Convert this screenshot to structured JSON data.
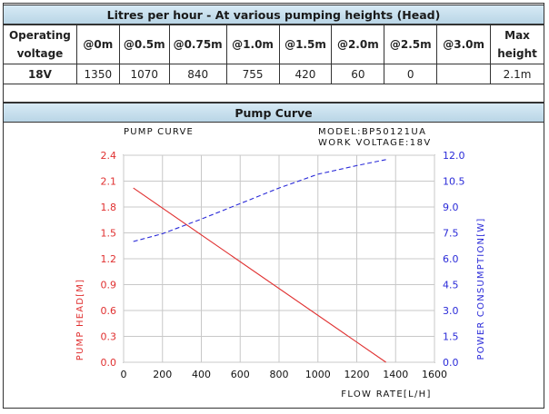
{
  "table_title": "Litres per hour - At various pumping heights (Head)",
  "table": {
    "headers": [
      "Operating\nvoltage",
      "@0m",
      "@0.5m",
      "@0.75m",
      "@1.0m",
      "@1.5m",
      "@2.0m",
      "@2.5m",
      "@3.0m",
      "Max\nheight"
    ],
    "rows": [
      [
        "18V",
        "1350",
        "1070",
        "840",
        "755",
        "420",
        "60",
        "0",
        "",
        "2.1m"
      ]
    ]
  },
  "chart_section_title": "Pump Curve",
  "chart_header": {
    "left": "PUMP CURVE",
    "model": "MODEL:BP50121UA",
    "voltage": "WORK VOLTAGE:18V"
  },
  "colors": {
    "head": "#e03030",
    "power": "#2a2ad8",
    "grid": "#c8c8c8",
    "header_band": "#c9e0ee"
  },
  "chart_data": {
    "type": "line",
    "xlabel": "FLOW RATE[L/H]",
    "ylabel_left": "PUMP HEAD[M]",
    "ylabel_right": "POWER CONSUMPTION[W]",
    "xlim": [
      0,
      1600
    ],
    "ylim_left": [
      0,
      2.4
    ],
    "ylim_right": [
      0,
      12.0
    ],
    "x_ticks": [
      0,
      200,
      400,
      600,
      800,
      1000,
      1200,
      1400,
      1600
    ],
    "y_ticks_left": [
      "0.0",
      "0.3",
      "0.6",
      "0.9",
      "1.2",
      "1.5",
      "1.8",
      "2.1",
      "2.4"
    ],
    "y_ticks_right": [
      "0.0",
      "1.5",
      "3.0",
      "4.5",
      "6.0",
      "7.5",
      "9.0",
      "10.5",
      "12.0"
    ],
    "grid": true,
    "series": [
      {
        "axis": "left",
        "style": "solid",
        "x": [
          50,
          1350
        ],
        "y": [
          2.02,
          0.0
        ]
      },
      {
        "axis": "right",
        "style": "dashed",
        "x": [
          50,
          200,
          400,
          600,
          800,
          1000,
          1200,
          1350
        ],
        "y": [
          7.0,
          7.45,
          8.3,
          9.2,
          10.1,
          10.9,
          11.4,
          11.75
        ]
      }
    ]
  }
}
